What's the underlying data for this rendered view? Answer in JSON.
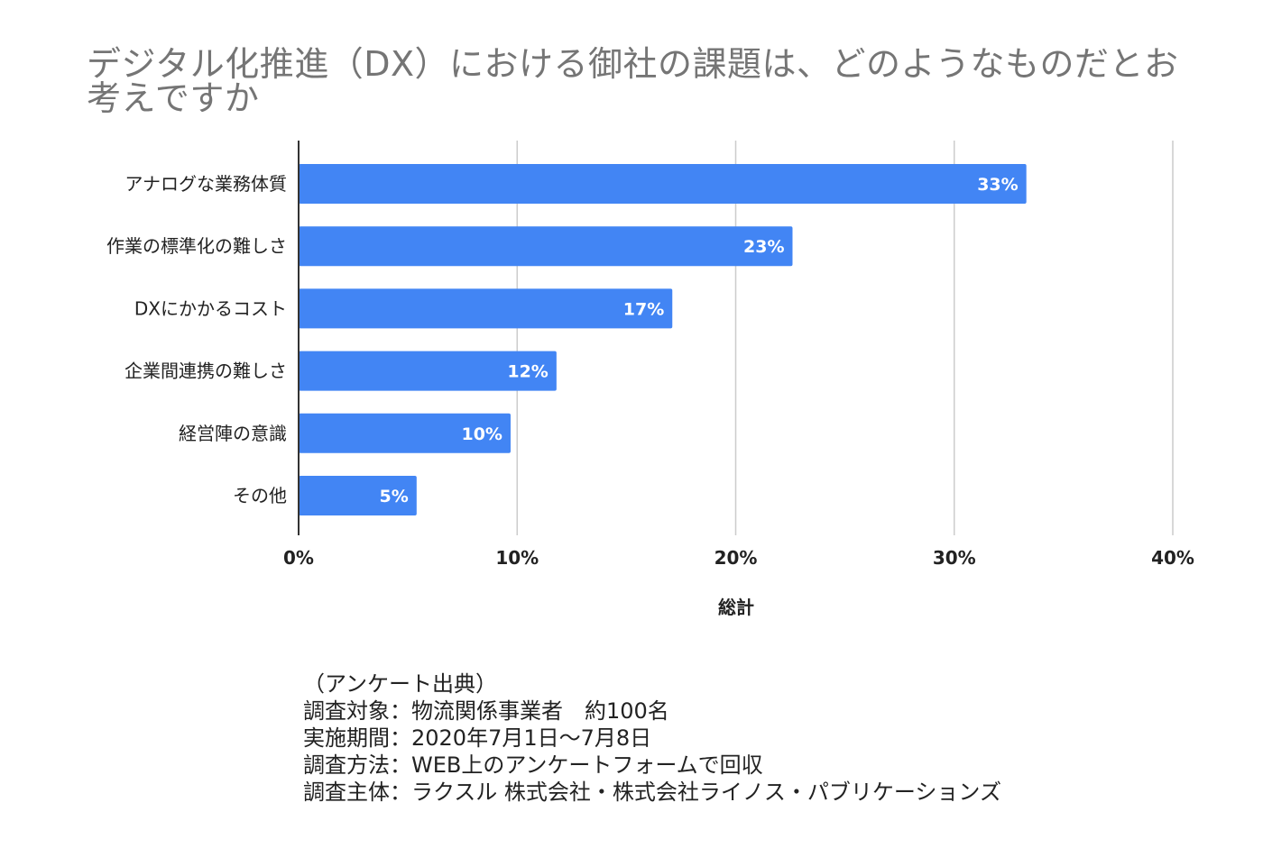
{
  "chart_data": {
    "type": "bar",
    "orientation": "horizontal",
    "title": "デジタル化推進（DX）における御社の課題は、どのようなものだとお考えですか",
    "categories": [
      "アナログな業務体質",
      "作業の標準化の難しさ",
      "DXにかかるコスト",
      "企業間連携の難しさ",
      "経営陣の意識",
      "その他"
    ],
    "values": [
      33.3,
      22.6,
      17.1,
      11.8,
      9.7,
      5.4
    ],
    "data_labels": [
      "33%",
      "23%",
      "17%",
      "12%",
      "10%",
      "5%"
    ],
    "xlabel": "総計",
    "ylabel": "",
    "xlim": [
      0,
      40
    ],
    "x_ticks": [
      0,
      10,
      20,
      30,
      40
    ],
    "x_tick_labels": [
      "0%",
      "10%",
      "20%",
      "30%",
      "40%"
    ],
    "grid": true,
    "bar_color": "#4285f4",
    "grid_color": "#cccccc",
    "axis_color": "#333333"
  },
  "source_note": {
    "lines": [
      "（アンケート出典）",
      "調査対象：物流関係事業者　約100名",
      "実施期間：2020年7月1日〜7月8日",
      "調査方法：WEB上のアンケートフォームで回収",
      "調査主体：ラクスル 株式会社・株式会社ライノス・パブリケーションズ"
    ]
  }
}
